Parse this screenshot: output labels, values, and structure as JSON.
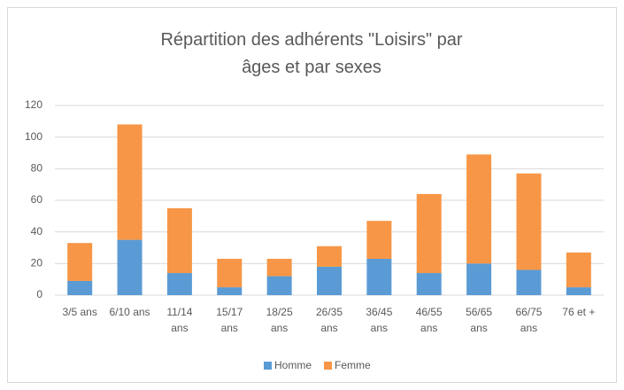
{
  "chart_data": {
    "type": "stacked_bar",
    "title": "Répartition des adhérents \"Loisirs\" par âges et par sexes",
    "categories": [
      "3/5 ans",
      "6/10 ans",
      "11/14 ans",
      "15/17 ans",
      "18/25 ans",
      "26/35 ans",
      "36/45 ans",
      "46/55 ans",
      "56/65 ans",
      "66/75 ans",
      "76 et +"
    ],
    "series": [
      {
        "name": "Homme",
        "color": "#5b9bd5",
        "values": [
          9,
          35,
          14,
          5,
          12,
          18,
          23,
          14,
          20,
          16,
          5
        ]
      },
      {
        "name": "Femme",
        "color": "#f79646",
        "values": [
          24,
          73,
          41,
          18,
          11,
          13,
          24,
          50,
          69,
          61,
          22
        ]
      }
    ],
    "ylim": [
      0,
      120
    ],
    "yticks": [
      0,
      20,
      40,
      60,
      80,
      100,
      120
    ],
    "grid": true,
    "legend": "bottom"
  }
}
